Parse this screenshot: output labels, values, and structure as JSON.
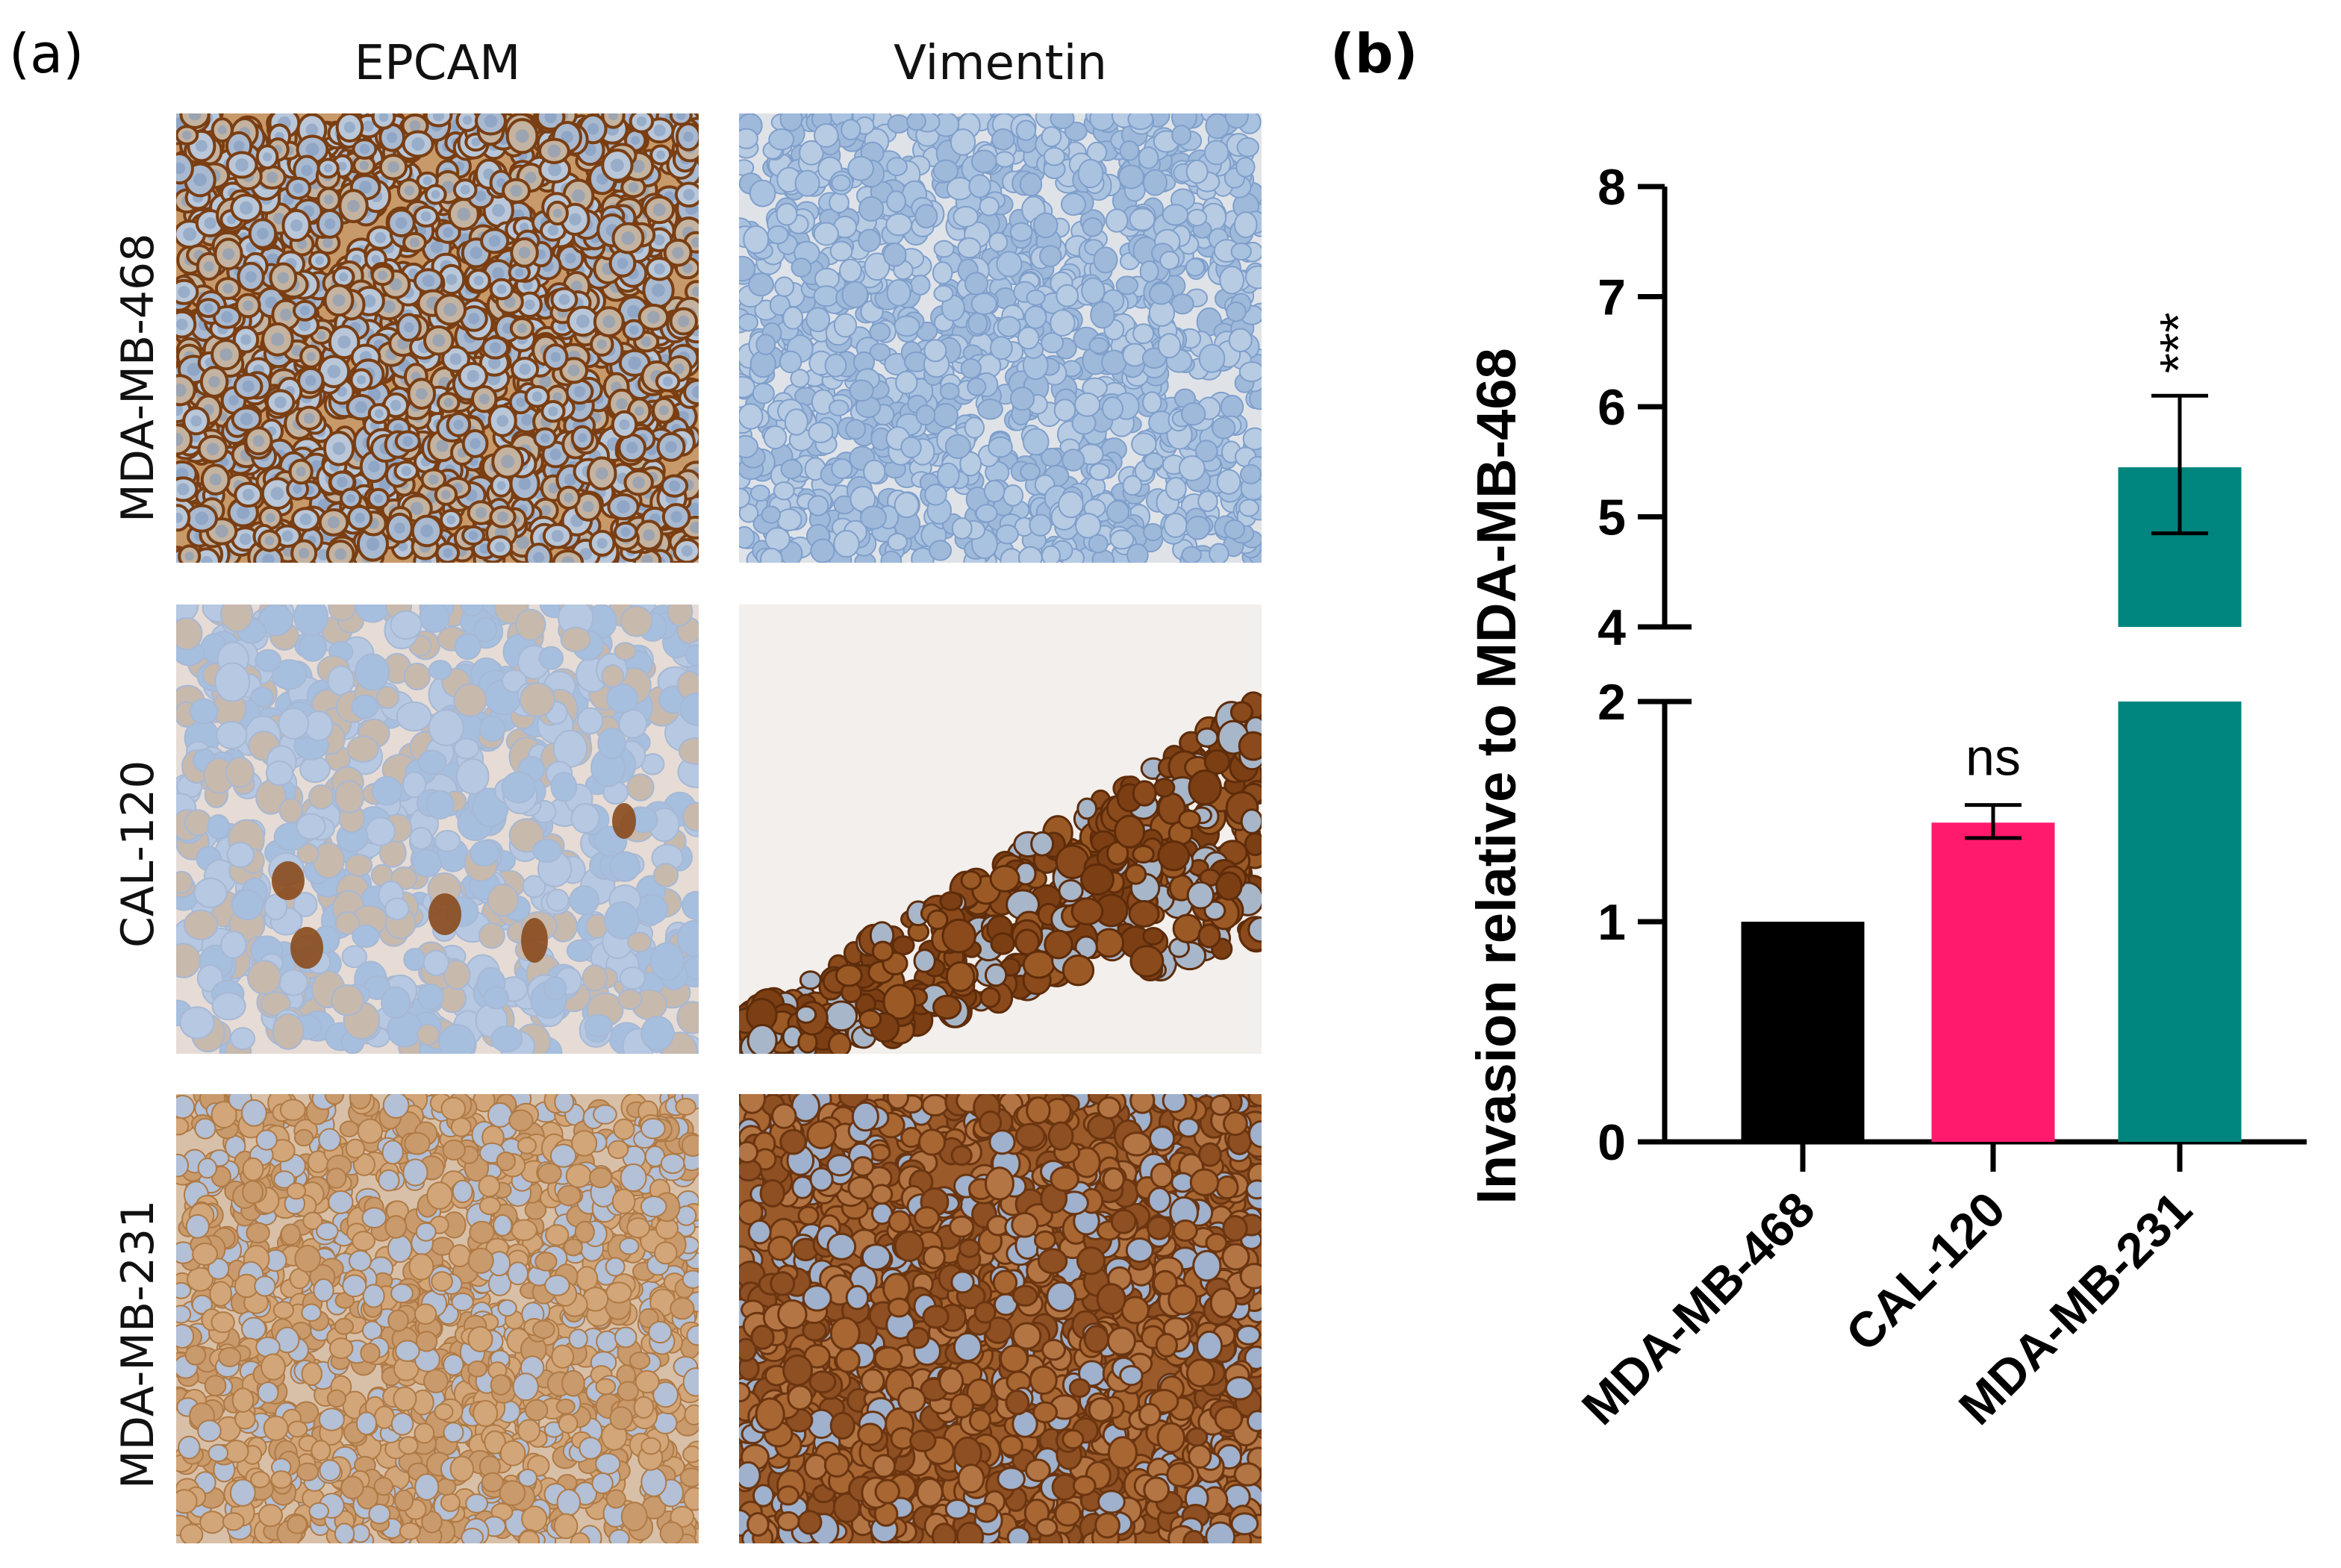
{
  "panel_a": {
    "label": "(a)",
    "columns": [
      "EPCAM",
      "Vimentin"
    ],
    "rows": [
      "MDA-MB-468",
      "CAL-120",
      "MDA-MB-231"
    ]
  },
  "panel_b": {
    "label": "(b)"
  },
  "colors": {
    "bar_1": "#000000",
    "bar_2": "#ff1a6e",
    "bar_3": "#00857f",
    "stain_brown": "#8a4a1c",
    "nuclei_blue": "#8fb0d8"
  },
  "chart_data": {
    "type": "bar",
    "categories": [
      "MDA-MB-468",
      "CAL-120",
      "MDA-MB-231"
    ],
    "values": [
      1.0,
      1.45,
      5.45
    ],
    "error_low": [
      1.0,
      1.38,
      4.85
    ],
    "error_high": [
      1.0,
      1.53,
      6.1
    ],
    "significance": [
      "",
      "ns",
      "***"
    ],
    "ylabel": "Invasion relative to MDA-MB-468",
    "xlabel": "",
    "y_segments": [
      {
        "range": [
          0,
          2
        ],
        "ticks": [
          0,
          1,
          2
        ]
      },
      {
        "range": [
          4,
          8
        ],
        "ticks": [
          4,
          5,
          6,
          7,
          8
        ]
      }
    ],
    "axis_break": [
      2,
      4
    ],
    "grid": false,
    "legend": "none"
  }
}
